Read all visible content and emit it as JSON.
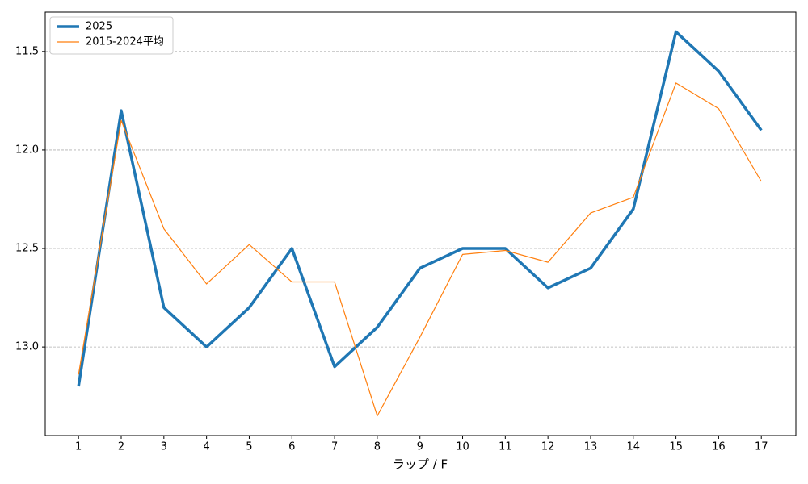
{
  "chart_data": {
    "type": "line",
    "xlabel": "ラップ / F",
    "x": [
      1,
      2,
      3,
      4,
      5,
      6,
      7,
      8,
      9,
      10,
      11,
      12,
      13,
      14,
      15,
      16,
      17
    ],
    "series": [
      {
        "name": "2025",
        "color": "#1f77b4",
        "line_width": 3.5,
        "values": [
          13.2,
          11.8,
          12.8,
          13.0,
          12.8,
          12.5,
          13.1,
          12.9,
          12.6,
          12.5,
          12.5,
          12.7,
          12.6,
          12.3,
          11.4,
          11.6,
          11.9
        ]
      },
      {
        "name": "2015-2024平均",
        "color": "#ff7f0e",
        "line_width": 1.2,
        "values": [
          13.14,
          11.85,
          12.4,
          12.68,
          12.48,
          12.67,
          12.67,
          13.35,
          12.95,
          12.53,
          12.51,
          12.57,
          12.32,
          12.24,
          11.66,
          11.79,
          12.16
        ]
      }
    ],
    "xlim": [
      0.22,
      17.81
    ],
    "xticks": [
      1,
      2,
      3,
      4,
      5,
      6,
      7,
      8,
      9,
      10,
      11,
      12,
      13,
      14,
      15,
      16,
      17
    ],
    "ylim": [
      13.45,
      11.3
    ],
    "yticks": [
      11.5,
      {
        "value": 12,
        "label": "12.0"
      },
      12.5,
      {
        "value": 13,
        "label": "13.0"
      }
    ],
    "grid": true,
    "legend": "upper-left"
  }
}
